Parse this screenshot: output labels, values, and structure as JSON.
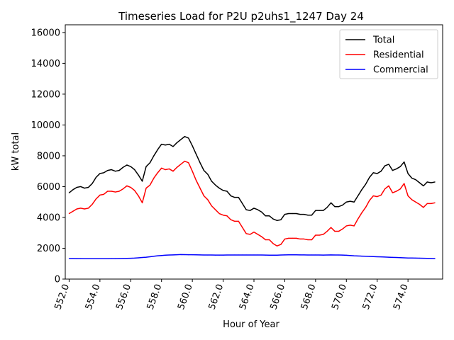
{
  "chart_data": {
    "type": "line",
    "title": "Timeseries Load for P2U p2uhs1_1247  Day 24",
    "xlabel": "Hour of Year",
    "ylabel": "kW total",
    "xlim": [
      551.75,
      576.25
    ],
    "ylim": [
      0,
      16500
    ],
    "x_ticks": [
      552,
      554,
      556,
      558,
      560,
      562,
      564,
      566,
      568,
      570,
      572,
      574
    ],
    "x_tick_labels": [
      "552.0",
      "554.0",
      "556.0",
      "558.0",
      "560.0",
      "562.0",
      "564.0",
      "566.0",
      "568.0",
      "570.0",
      "572.0",
      "574.0"
    ],
    "y_ticks": [
      0,
      2000,
      4000,
      6000,
      8000,
      10000,
      12000,
      14000,
      16000
    ],
    "y_tick_labels": [
      "0",
      "2000",
      "4000",
      "6000",
      "8000",
      "10000",
      "12000",
      "14000",
      "16000"
    ],
    "legend_position": "upper-right",
    "x": [
      552.0,
      552.25,
      552.5,
      552.75,
      553.0,
      553.25,
      553.5,
      553.75,
      554.0,
      554.25,
      554.5,
      554.75,
      555.0,
      555.25,
      555.5,
      555.75,
      556.0,
      556.25,
      556.5,
      556.75,
      557.0,
      557.25,
      557.5,
      557.75,
      558.0,
      558.25,
      558.5,
      558.75,
      559.0,
      559.25,
      559.5,
      559.75,
      560.0,
      560.25,
      560.5,
      560.75,
      561.0,
      561.25,
      561.5,
      561.75,
      562.0,
      562.25,
      562.5,
      562.75,
      563.0,
      563.25,
      563.5,
      563.75,
      564.0,
      564.25,
      564.5,
      564.75,
      565.0,
      565.25,
      565.5,
      565.75,
      566.0,
      566.25,
      566.5,
      566.75,
      567.0,
      567.25,
      567.5,
      567.75,
      568.0,
      568.25,
      568.5,
      568.75,
      569.0,
      569.25,
      569.5,
      569.75,
      570.0,
      570.25,
      570.5,
      570.75,
      571.0,
      571.25,
      571.5,
      571.75,
      572.0,
      572.25,
      572.5,
      572.75,
      573.0,
      573.25,
      573.5,
      573.75,
      574.0,
      574.25,
      574.5,
      574.75,
      575.0,
      575.25,
      575.5,
      575.75
    ],
    "series": [
      {
        "name": "Total",
        "color": "#000000",
        "values": [
          5600,
          5800,
          5950,
          6000,
          5900,
          5950,
          6200,
          6600,
          6850,
          6900,
          7050,
          7100,
          7000,
          7050,
          7250,
          7400,
          7300,
          7100,
          6750,
          6350,
          7300,
          7550,
          8000,
          8400,
          8750,
          8700,
          8750,
          8600,
          8850,
          9050,
          9250,
          9150,
          8650,
          8100,
          7550,
          7050,
          6800,
          6350,
          6100,
          5900,
          5750,
          5700,
          5400,
          5300,
          5300,
          4900,
          4500,
          4450,
          4600,
          4500,
          4350,
          4100,
          4100,
          3900,
          3800,
          3850,
          4200,
          4250,
          4250,
          4250,
          4200,
          4200,
          4150,
          4150,
          4450,
          4450,
          4450,
          4650,
          4950,
          4700,
          4700,
          4800,
          5000,
          5050,
          5000,
          5400,
          5800,
          6150,
          6600,
          6900,
          6850,
          7000,
          7350,
          7450,
          7050,
          7150,
          7300,
          7600,
          6850,
          6550,
          6450,
          6250,
          6050,
          6300,
          6250,
          6300
        ]
      },
      {
        "name": "Residential",
        "color": "#ff0000",
        "values": [
          4250,
          4400,
          4550,
          4600,
          4550,
          4600,
          4850,
          5200,
          5450,
          5500,
          5700,
          5700,
          5650,
          5700,
          5850,
          6050,
          5950,
          5750,
          5400,
          4950,
          5900,
          6100,
          6550,
          6900,
          7200,
          7100,
          7150,
          7000,
          7250,
          7450,
          7650,
          7550,
          7000,
          6400,
          5900,
          5400,
          5150,
          4750,
          4500,
          4250,
          4150,
          4100,
          3850,
          3750,
          3750,
          3350,
          2950,
          2900,
          3050,
          2900,
          2750,
          2550,
          2550,
          2300,
          2150,
          2250,
          2600,
          2650,
          2650,
          2650,
          2600,
          2600,
          2550,
          2550,
          2850,
          2850,
          2900,
          3100,
          3350,
          3100,
          3100,
          3250,
          3450,
          3500,
          3450,
          3900,
          4300,
          4650,
          5100,
          5400,
          5350,
          5450,
          5850,
          6050,
          5600,
          5700,
          5850,
          6200,
          5400,
          5150,
          5000,
          4850,
          4650,
          4900,
          4900,
          4950
        ]
      },
      {
        "name": "Commercial",
        "color": "#0000ff",
        "values": [
          1330,
          1330,
          1325,
          1325,
          1320,
          1320,
          1320,
          1320,
          1320,
          1320,
          1320,
          1325,
          1325,
          1330,
          1340,
          1345,
          1350,
          1360,
          1380,
          1400,
          1420,
          1450,
          1480,
          1510,
          1530,
          1550,
          1560,
          1570,
          1580,
          1590,
          1585,
          1580,
          1580,
          1575,
          1570,
          1565,
          1560,
          1560,
          1555,
          1555,
          1555,
          1560,
          1560,
          1565,
          1565,
          1565,
          1565,
          1565,
          1565,
          1565,
          1560,
          1555,
          1550,
          1550,
          1550,
          1560,
          1570,
          1575,
          1575,
          1575,
          1570,
          1570,
          1565,
          1565,
          1565,
          1560,
          1555,
          1560,
          1570,
          1565,
          1560,
          1555,
          1545,
          1530,
          1510,
          1500,
          1490,
          1480,
          1470,
          1460,
          1450,
          1440,
          1430,
          1420,
          1410,
          1400,
          1390,
          1380,
          1370,
          1365,
          1360,
          1355,
          1350,
          1345,
          1340,
          1335
        ]
      }
    ]
  }
}
